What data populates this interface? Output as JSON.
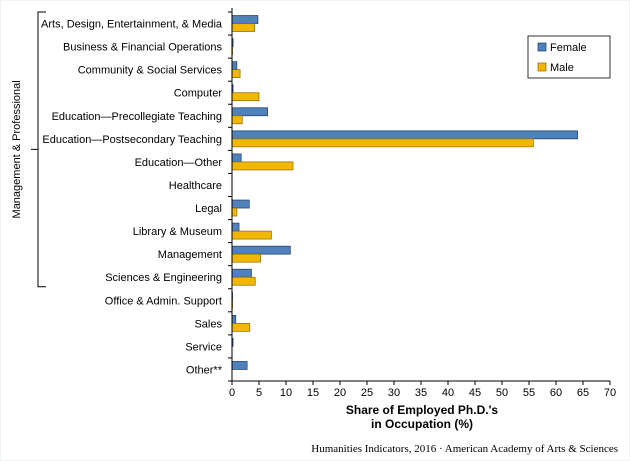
{
  "chart_data": {
    "type": "bar",
    "orientation": "horizontal",
    "categories": [
      "Arts, Design, Entertainment, & Media",
      "Business & Financial Operations",
      "Community & Social Services",
      "Computer",
      "Education—Precollegiate Teaching",
      "Education—Postsecondary Teaching",
      "Education—Other",
      "Healthcare",
      "Legal",
      "Library & Museum",
      "Management",
      "Sciences & Engineering",
      "Office & Admin. Support",
      "Sales",
      "Service",
      "Other**"
    ],
    "series": [
      {
        "name": "Female",
        "color": "#4f81bd",
        "values": [
          4.8,
          0.2,
          0.9,
          0.2,
          6.6,
          64.0,
          1.7,
          0.0,
          3.2,
          1.3,
          10.8,
          3.6,
          0.1,
          0.7,
          0.2,
          2.8
        ]
      },
      {
        "name": "Male",
        "color": "#f2b705",
        "values": [
          4.2,
          0.1,
          1.5,
          5.0,
          1.9,
          55.8,
          11.3,
          0.0,
          0.9,
          7.3,
          5.3,
          4.3,
          0.1,
          3.3,
          0.0,
          0.0
        ]
      }
    ],
    "xlabel_lines": [
      "Share of Employed Ph.D.'s",
      "in Occupation (%)"
    ],
    "xlim": [
      0,
      70
    ],
    "xticks": [
      0,
      5,
      10,
      15,
      20,
      25,
      30,
      35,
      40,
      45,
      50,
      55,
      60,
      65,
      70
    ],
    "grid": false,
    "legend_position": "top-right",
    "group_label": "Management & Professional",
    "group_range": [
      "Arts, Design, Entertainment, & Media",
      "Sciences & Engineering"
    ],
    "credit": "Humanities Indicators, 2016 · American Academy of Arts & Sciences"
  }
}
